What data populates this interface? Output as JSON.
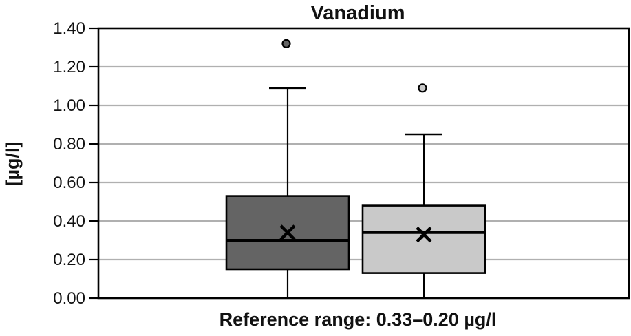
{
  "title": "Vanadium",
  "y_axis": {
    "label": "[µg/l]",
    "ticks": [
      "1.40",
      "1.20",
      "1.00",
      "0.80",
      "0.60",
      "0.40",
      "0.20",
      "0.00"
    ]
  },
  "x_axis": {
    "label": "Reference range: 0.33–0.20 µg/l"
  },
  "colors": {
    "box1_fill": "#646464",
    "box2_fill": "#c9c9c9",
    "stroke": "#000000",
    "gridline": "#b0b0b0",
    "background": "#ffffff"
  },
  "chart_data": {
    "type": "boxplot",
    "title": "Vanadium",
    "ylabel": "[µg/l]",
    "xlabel": "Reference range: 0.33–0.20 µg/l",
    "ylim": [
      0.0,
      1.4
    ],
    "ytick_interval": 0.2,
    "grid": true,
    "series": [
      {
        "fill": "#646464",
        "min": 0.0,
        "q1": 0.15,
        "median": 0.3,
        "q3": 0.53,
        "whisker_high": 1.09,
        "mean": 0.34,
        "outliers": [
          1.32
        ]
      },
      {
        "fill": "#c9c9c9",
        "min": 0.0,
        "q1": 0.13,
        "median": 0.34,
        "q3": 0.48,
        "whisker_high": 0.85,
        "mean": 0.33,
        "outliers": [
          1.09
        ]
      }
    ]
  }
}
